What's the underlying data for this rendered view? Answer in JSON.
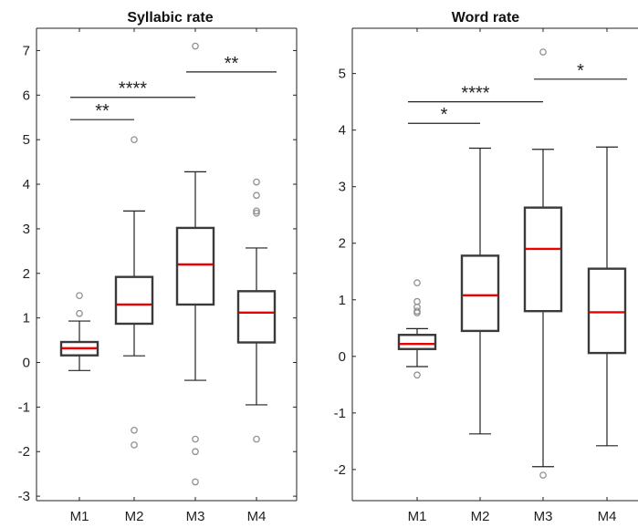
{
  "chart_data": [
    {
      "type": "box",
      "title": "Syllabic rate",
      "categories": [
        "M1",
        "M2",
        "M3",
        "M4"
      ],
      "ylim": [
        -3.1,
        7.5
      ],
      "yticks": [
        -3,
        -2,
        -1,
        0,
        1,
        2,
        3,
        4,
        5,
        6,
        7
      ],
      "grid": false,
      "boxes": [
        {
          "category": "M1",
          "whisker_low": -0.18,
          "q1": 0.16,
          "median": 0.32,
          "q3": 0.46,
          "whisker_high": 0.93,
          "outliers": [
            1.1,
            1.5
          ]
        },
        {
          "category": "M2",
          "whisker_low": 0.15,
          "q1": 0.87,
          "median": 1.3,
          "q3": 1.92,
          "whisker_high": 3.4,
          "outliers": [
            5.0,
            -1.52,
            -1.85
          ]
        },
        {
          "category": "M3",
          "whisker_low": -0.4,
          "q1": 1.3,
          "median": 2.2,
          "q3": 3.02,
          "whisker_high": 4.28,
          "outliers": [
            7.1,
            -1.72,
            -2.0,
            -2.68
          ]
        },
        {
          "category": "M4",
          "whisker_low": -0.95,
          "q1": 0.45,
          "median": 1.12,
          "q3": 1.6,
          "whisker_high": 2.57,
          "outliers": [
            4.05,
            3.75,
            3.4,
            3.35,
            -1.72
          ]
        }
      ],
      "annotations": [
        {
          "from": "M1",
          "to": "M2",
          "y": 5.45,
          "label": "**"
        },
        {
          "from": "M1",
          "to": "M3",
          "y": 5.95,
          "label": "****"
        },
        {
          "from": "M3",
          "to": "M4",
          "y": 6.52,
          "label": "**"
        }
      ]
    },
    {
      "type": "box",
      "title": "Word rate",
      "categories": [
        "M1",
        "M2",
        "M3",
        "M4"
      ],
      "ylim": [
        -2.55,
        5.8
      ],
      "yticks": [
        -2,
        -1,
        0,
        1,
        2,
        3,
        4,
        5
      ],
      "grid": false,
      "boxes": [
        {
          "category": "M1",
          "whisker_low": -0.18,
          "q1": 0.13,
          "median": 0.22,
          "q3": 0.38,
          "whisker_high": 0.49,
          "outliers": [
            1.3,
            0.97,
            0.87,
            0.8,
            0.77,
            -0.33
          ]
        },
        {
          "category": "M2",
          "whisker_low": -1.37,
          "q1": 0.45,
          "median": 1.08,
          "q3": 1.78,
          "whisker_high": 3.68,
          "outliers": []
        },
        {
          "category": "M3",
          "whisker_low": -1.95,
          "q1": 0.8,
          "median": 1.9,
          "q3": 2.63,
          "whisker_high": 3.66,
          "outliers": [
            5.38,
            -2.1
          ]
        },
        {
          "category": "M4",
          "whisker_low": -1.58,
          "q1": 0.06,
          "median": 0.78,
          "q3": 1.55,
          "whisker_high": 3.7,
          "outliers": []
        }
      ],
      "annotations": [
        {
          "from": "M1",
          "to": "M2",
          "y": 4.12,
          "label": "*"
        },
        {
          "from": "M1",
          "to": "M3",
          "y": 4.5,
          "label": "****"
        },
        {
          "from": "M3",
          "to": "M4",
          "y": 4.9,
          "label": "*"
        }
      ]
    }
  ],
  "colors": {
    "box_edge": "#3a3a3a",
    "median": "#ee0000",
    "outlier": "#909090",
    "axis": "#222222",
    "whisker": "#222222"
  }
}
